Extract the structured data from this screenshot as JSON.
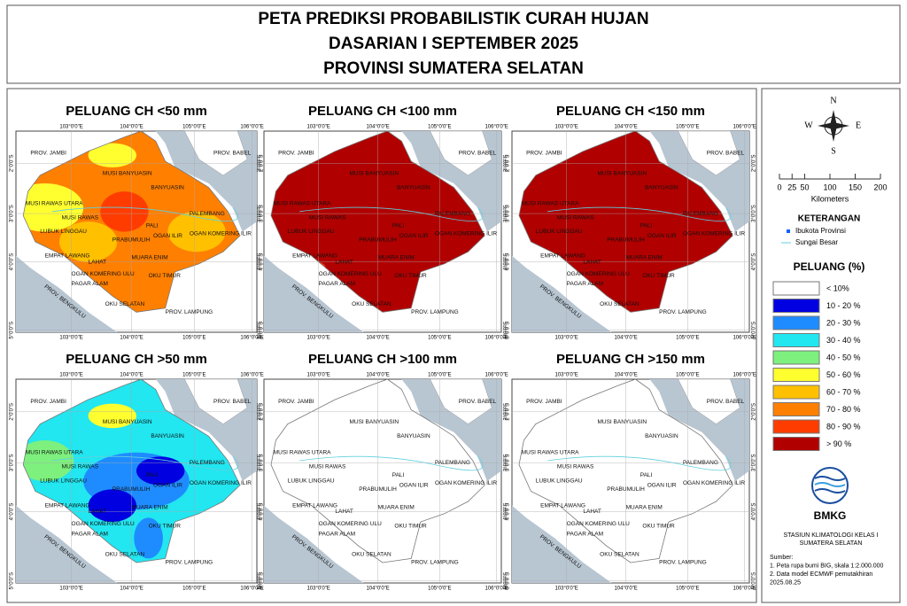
{
  "header": {
    "lines": [
      "PETA PREDIKSI PROBABILISTIK CURAH HUJAN",
      "DASARIAN I SEPTEMBER 2025",
      "PROVINSI SUMATERA SELATAN"
    ]
  },
  "panels": [
    {
      "title": "PELUANG CH <50 mm"
    },
    {
      "title": "PELUANG CH <100 mm"
    },
    {
      "title": "PELUANG CH <150 mm"
    },
    {
      "title": "PELUANG CH >50 mm"
    },
    {
      "title": "PELUANG CH >100 mm"
    },
    {
      "title": "PELUANG CH >150 mm"
    }
  ],
  "map": {
    "lon_labels": [
      "103°0'0\"E",
      "104°0'0\"E",
      "105°0'0\"E",
      "106°0'0\"E"
    ],
    "lat_labels": [
      "2°0'0\"S",
      "3°0'0\"S",
      "4°0'0\"S",
      "5°0'0\"S"
    ],
    "regions": [
      "PROV. JAMBI",
      "PROV. BABEL",
      "MUSI BANYUASIN",
      "BANYUASIN",
      "MUSI RAWAS UTARA",
      "MUSI RAWAS",
      "LUBUK LINGGAU",
      "PALI",
      "PALEMBANG",
      "PRABUMULIH",
      "OGAN ILIR",
      "OGAN KOMERING ILIR",
      "EMPAT LAWANG",
      "LAHAT",
      "MUARA ENIM",
      "OGAN KOMERING ULU",
      "OKU TIMUR",
      "PAGAR ALAM",
      "OKU SELATAN",
      "PROV. BENGKULU",
      "PROV. LAMPUNG"
    ]
  },
  "side": {
    "compass": [
      "N",
      "S",
      "E",
      "W"
    ],
    "scale_ticks": [
      0,
      25,
      50,
      100,
      150,
      200
    ],
    "scale_unit": "Kilometers",
    "keterangan": {
      "title": "KETERANGAN",
      "items": [
        "Ibukota Provinsi",
        "Sungai Besar"
      ]
    },
    "legend": {
      "title": "PELUANG (%)",
      "items": [
        {
          "label": "< 10%",
          "color": "#ffffff"
        },
        {
          "label": "10 - 20 %",
          "color": "#0000e0"
        },
        {
          "label": "20 - 30 %",
          "color": "#1e8cff"
        },
        {
          "label": "30 - 40 %",
          "color": "#22e6f0"
        },
        {
          "label": "40 - 50 %",
          "color": "#7df07d"
        },
        {
          "label": "50 - 60 %",
          "color": "#ffff30"
        },
        {
          "label": "60 - 70 %",
          "color": "#ffc000"
        },
        {
          "label": "70 - 80 %",
          "color": "#ff7f00"
        },
        {
          "label": "80 - 90 %",
          "color": "#ff3c00"
        },
        {
          "label": "> 90 %",
          "color": "#b00000"
        }
      ]
    },
    "logo": "BMKG",
    "station": [
      "STASIUN KLIMATOLOGI KELAS I",
      "SUMATERA SELATAN"
    ],
    "sources": [
      "Sumber:",
      "1. Peta rupa bumi BIG, skala 1:2.000.000",
      "2. Data model ECMWF pemutakhiran",
      "    2025.08.25"
    ]
  }
}
